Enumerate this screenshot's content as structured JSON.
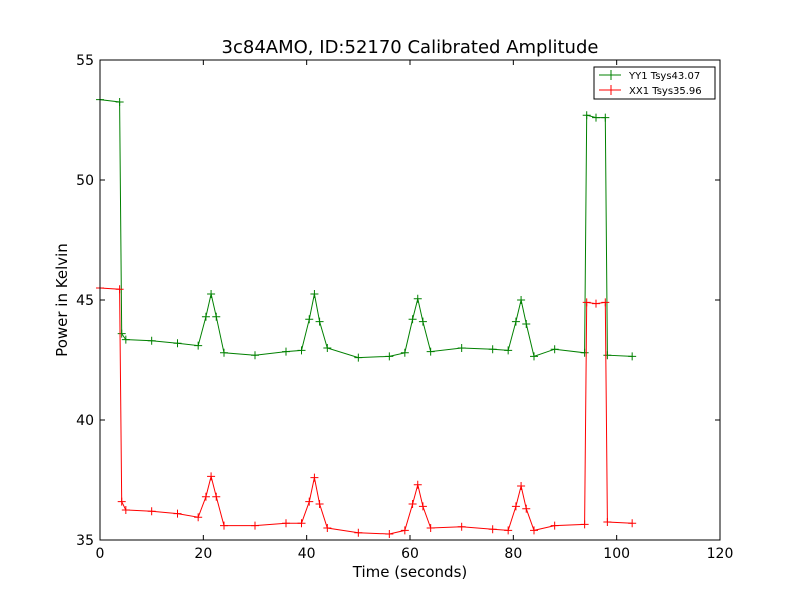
{
  "chart_data": {
    "type": "line",
    "title": "3c84AMO, ID:52170 Calibrated Amplitude",
    "xlabel": "Time (seconds)",
    "ylabel": "Power in Kelvin",
    "xlim": [
      0,
      120
    ],
    "ylim": [
      35,
      55
    ],
    "xticks": [
      "0",
      "20",
      "40",
      "60",
      "80",
      "100",
      "120"
    ],
    "yticks": [
      "35",
      "40",
      "45",
      "50",
      "55"
    ],
    "grid": false,
    "legend_position": "top-right",
    "marker": "+",
    "series": [
      {
        "name": "YY1 Tsys43.07",
        "color": "#008000",
        "x": [
          0,
          3.8,
          4.2,
          5,
          10,
          15,
          19,
          20.5,
          21.5,
          22.5,
          24,
          30,
          36,
          39,
          40.5,
          41.5,
          42.5,
          44,
          50,
          56,
          59,
          60.5,
          61.5,
          62.5,
          64,
          70,
          76,
          79,
          80.5,
          81.5,
          82.5,
          84,
          88,
          93.8,
          94.2,
          96,
          97.8,
          98.2,
          103
        ],
        "y": [
          53.35,
          53.25,
          43.6,
          43.35,
          43.3,
          43.2,
          43.1,
          44.3,
          45.25,
          44.3,
          42.8,
          42.7,
          42.85,
          42.9,
          44.2,
          45.25,
          44.1,
          43.0,
          42.6,
          42.65,
          42.8,
          44.2,
          45.05,
          44.1,
          42.85,
          43.0,
          42.95,
          42.9,
          44.1,
          45.0,
          44.0,
          42.65,
          42.95,
          42.8,
          52.7,
          52.6,
          52.6,
          42.7,
          42.65
        ]
      },
      {
        "name": "XX1 Tsys35.96",
        "color": "#ff0000",
        "x": [
          0,
          3.8,
          4.2,
          5,
          10,
          15,
          19,
          20.5,
          21.5,
          22.5,
          24,
          30,
          36,
          39,
          40.5,
          41.5,
          42.5,
          44,
          50,
          56,
          59,
          60.5,
          61.5,
          62.5,
          64,
          70,
          76,
          79,
          80.5,
          81.5,
          82.5,
          84,
          88,
          93.8,
          94.2,
          96,
          97.8,
          98.2,
          103
        ],
        "y": [
          45.5,
          45.45,
          36.6,
          36.25,
          36.2,
          36.1,
          35.95,
          36.8,
          37.65,
          36.8,
          35.6,
          35.6,
          35.7,
          35.7,
          36.6,
          37.6,
          36.5,
          35.5,
          35.3,
          35.25,
          35.4,
          36.5,
          37.3,
          36.4,
          35.5,
          35.55,
          35.45,
          35.4,
          36.4,
          37.25,
          36.3,
          35.4,
          35.6,
          35.65,
          44.9,
          44.85,
          44.9,
          35.75,
          35.7
        ]
      }
    ]
  }
}
